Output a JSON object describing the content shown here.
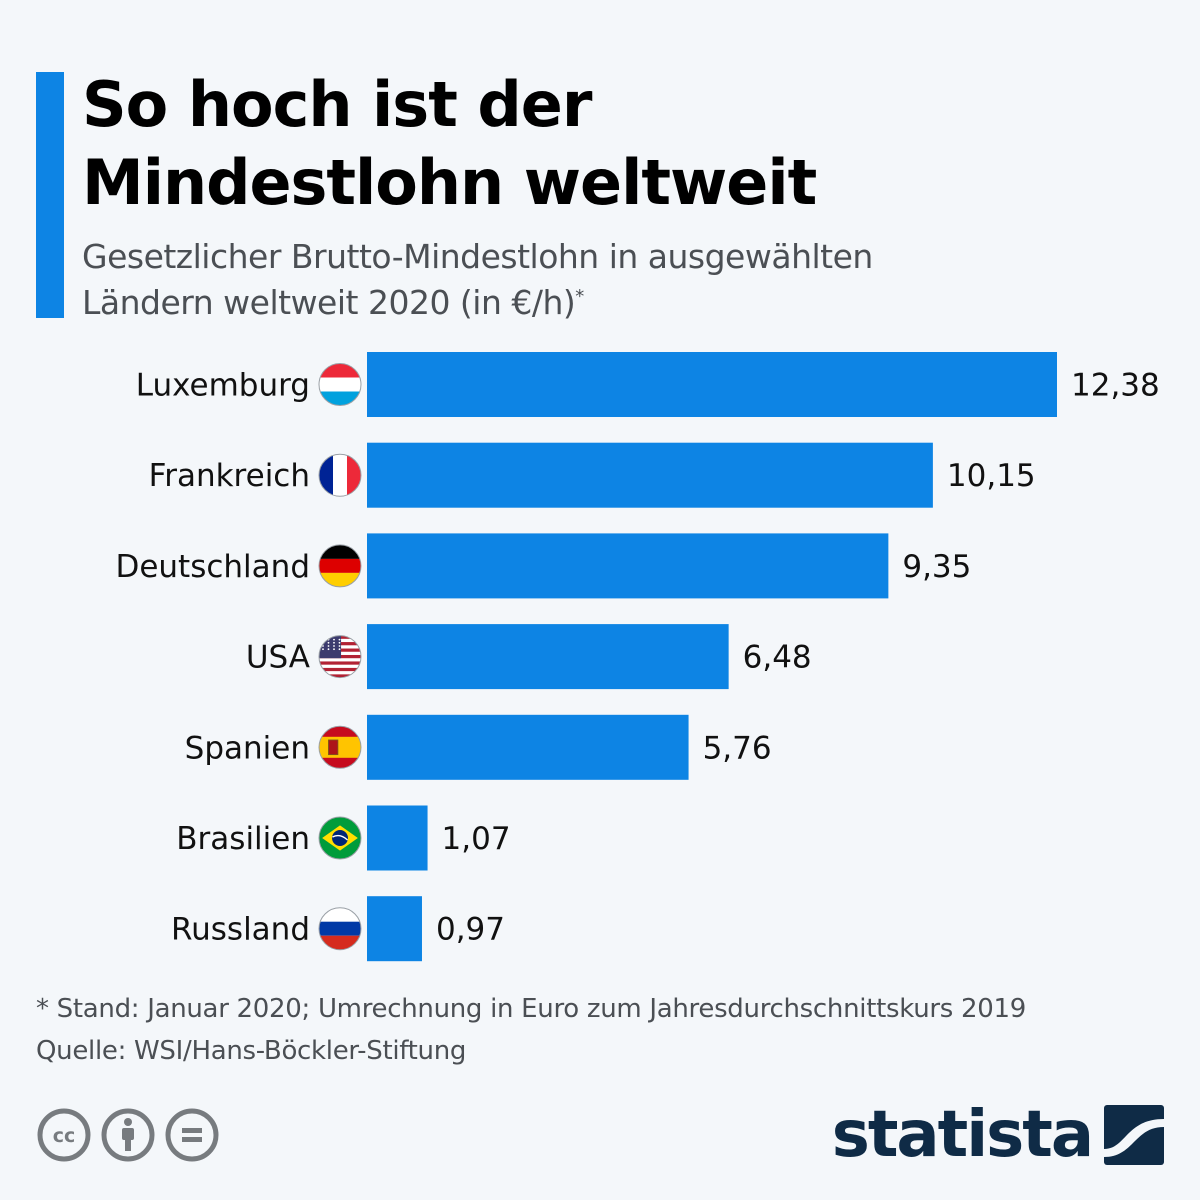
{
  "header": {
    "title_line1": "So hoch ist der",
    "title_line2": "Mindestlohn weltweit",
    "subtitle_line1": "Gesetzlicher Brutto-Mindestlohn in ausgewählten",
    "subtitle_line2": "Ländern weltweit 2020 (in €/h)",
    "subtitle_mark": "*",
    "accent_color": "#0d84e4"
  },
  "chart_data": {
    "type": "bar",
    "orientation": "horizontal",
    "title": "So hoch ist der Mindestlohn weltweit",
    "subtitle": "Gesetzlicher Brutto-Mindestlohn in ausgewählten Ländern weltweit 2020 (in €/h)*",
    "xlabel": "",
    "ylabel": "",
    "categories": [
      "Luxemburg",
      "Frankreich",
      "Deutschland",
      "USA",
      "Spanien",
      "Brasilien",
      "Russland"
    ],
    "values": [
      12.38,
      10.15,
      9.35,
      6.48,
      5.76,
      1.07,
      0.97
    ],
    "value_labels": [
      "12,38",
      "10,15",
      "9,35",
      "6,48",
      "5,76",
      "1,07",
      "0,97"
    ],
    "flags": [
      "flag-luxembourg",
      "flag-france",
      "flag-germany",
      "flag-usa",
      "flag-spain",
      "flag-brazil",
      "flag-russia"
    ],
    "xlim": [
      0,
      12.38
    ],
    "grid": false,
    "legend": "none",
    "bar_color": "#0d84e4"
  },
  "footer": {
    "note": "* Stand: Januar 2020; Umrechnung in Euro zum Jahresdurchschnittskurs 2019",
    "source": "Quelle: WSI/Hans-Böckler-Stiftung",
    "license_icons": [
      "creative-commons-icon",
      "attribution-icon",
      "no-derivatives-icon"
    ],
    "brand": "statista",
    "brand_color": "#0f2b46"
  }
}
